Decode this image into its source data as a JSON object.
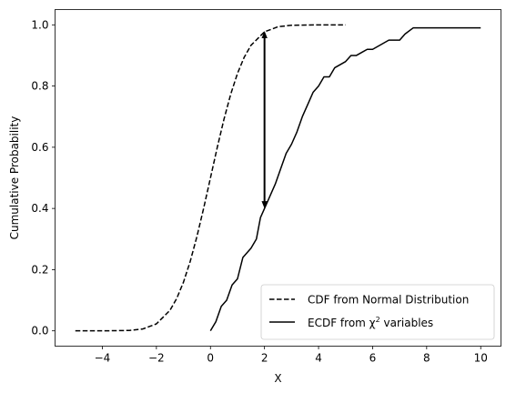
{
  "chart_data": {
    "type": "line",
    "xlabel": "X",
    "ylabel": "Cumulative Probability",
    "xlim": [
      -5.75,
      10.75
    ],
    "ylim": [
      -0.05,
      1.05
    ],
    "xticks": [
      -4,
      -2,
      0,
      2,
      4,
      6,
      8,
      10
    ],
    "xtick_labels": [
      "−4",
      "−2",
      "0",
      "2",
      "4",
      "6",
      "8",
      "10"
    ],
    "yticks": [
      0.0,
      0.2,
      0.4,
      0.6,
      0.8,
      1.0
    ],
    "ytick_labels": [
      "0.0",
      "0.2",
      "0.4",
      "0.6",
      "0.8",
      "1.0"
    ],
    "grid": false,
    "legend_placement": "lower-right",
    "series": [
      {
        "name": "CDF from Normal Distribution",
        "style": "dashed",
        "color": "#000000",
        "x": [
          -5,
          -4,
          -3,
          -2.5,
          -2,
          -1.5,
          -1.25,
          -1,
          -0.75,
          -0.5,
          -0.25,
          0,
          0.25,
          0.5,
          0.75,
          1,
          1.25,
          1.5,
          2,
          2.5,
          3,
          4,
          5
        ],
        "y": [
          0.0,
          0.0,
          0.0013,
          0.0062,
          0.0228,
          0.0668,
          0.1056,
          0.1587,
          0.2266,
          0.3085,
          0.4013,
          0.5,
          0.5987,
          0.6915,
          0.7734,
          0.8413,
          0.8944,
          0.9332,
          0.9772,
          0.9938,
          0.9987,
          1.0,
          1.0
        ]
      },
      {
        "name": "ECDF from χ² variables",
        "style": "solid",
        "color": "#000000",
        "x": [
          0,
          0.2,
          0.4,
          0.6,
          0.8,
          1.0,
          1.2,
          1.5,
          1.7,
          1.85,
          2.0,
          2.2,
          2.4,
          2.6,
          2.8,
          3.0,
          3.2,
          3.4,
          3.6,
          3.8,
          4.0,
          4.2,
          4.4,
          4.6,
          4.8,
          5.0,
          5.2,
          5.4,
          5.6,
          5.8,
          6.0,
          6.2,
          6.6,
          7.0,
          7.2,
          7.5,
          8.0,
          9.0,
          10.0
        ],
        "y": [
          0.0,
          0.03,
          0.08,
          0.1,
          0.15,
          0.17,
          0.24,
          0.27,
          0.3,
          0.37,
          0.4,
          0.44,
          0.48,
          0.53,
          0.58,
          0.61,
          0.65,
          0.7,
          0.74,
          0.78,
          0.8,
          0.83,
          0.83,
          0.86,
          0.87,
          0.88,
          0.9,
          0.9,
          0.91,
          0.92,
          0.92,
          0.93,
          0.95,
          0.95,
          0.97,
          0.99,
          0.99,
          0.99,
          0.99
        ]
      }
    ],
    "legend_math_superscript": "2",
    "annotations": [
      {
        "type": "double-arrow",
        "x": 2.0,
        "y_from": 0.4,
        "y_to": 0.98
      }
    ]
  }
}
